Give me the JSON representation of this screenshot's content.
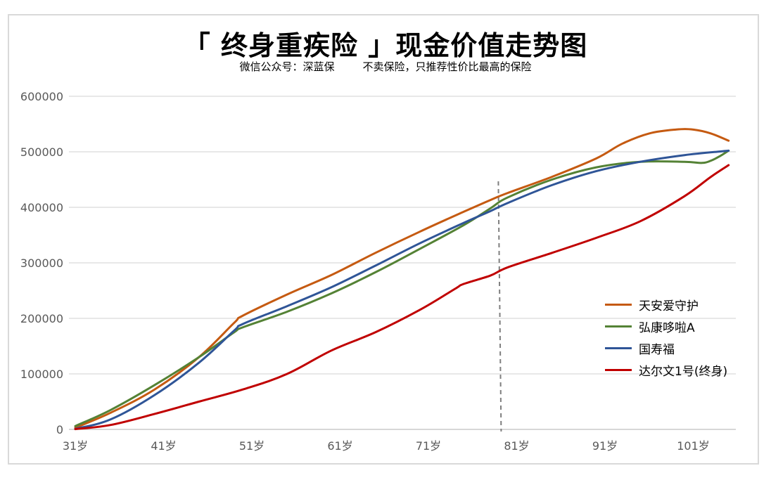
{
  "chart_data": {
    "type": "line",
    "title": "「 终身重疾险 」现金价值走势图",
    "subtitle_left": "微信公众号：深蓝保",
    "subtitle_right": "不卖保险，只推荐性价比最高的保险",
    "xlabel": "",
    "ylabel": "",
    "x_range": [
      31,
      105
    ],
    "ylim": [
      0,
      600000
    ],
    "y_ticks": [
      0,
      100000,
      200000,
      300000,
      400000,
      500000,
      600000
    ],
    "y_tick_labels": [
      "0",
      "100000",
      "200000",
      "300000",
      "400000",
      "500000",
      "600000"
    ],
    "x_ticks": [
      31,
      41,
      51,
      61,
      71,
      81,
      91,
      101
    ],
    "x_tick_labels": [
      "31岁",
      "41岁",
      "51岁",
      "61岁",
      "71岁",
      "81岁",
      "91岁",
      "101岁"
    ],
    "reference_line_x": 79,
    "grid": "horizontal",
    "legend_position": "bottom-right",
    "series": [
      {
        "name": "天安爱守护",
        "color": "#c55a11",
        "x": [
          31,
          35,
          40,
          45,
          49,
          50,
          55,
          60,
          65,
          70,
          75,
          78,
          80,
          85,
          90,
          93,
          96,
          99,
          101,
          103,
          105
        ],
        "y": [
          3000,
          30000,
          72000,
          130000,
          192000,
          205000,
          243000,
          278000,
          318000,
          356000,
          392000,
          413000,
          426000,
          455000,
          488000,
          515000,
          533000,
          540000,
          540000,
          533000,
          520000
        ]
      },
      {
        "name": "弘康哆啦A",
        "color": "#548235",
        "x": [
          31,
          35,
          40,
          45,
          49,
          50,
          55,
          60,
          65,
          70,
          75,
          78,
          80,
          85,
          90,
          95,
          100,
          102,
          103,
          104,
          105
        ],
        "y": [
          6000,
          35000,
          80000,
          130000,
          175000,
          184000,
          212000,
          245000,
          283000,
          325000,
          368000,
          398000,
          418000,
          450000,
          472000,
          482000,
          482000,
          480000,
          484000,
          492000,
          502000
        ]
      },
      {
        "name": "国寿福",
        "color": "#2f5597",
        "x": [
          31,
          35,
          40,
          45,
          49,
          50,
          55,
          60,
          65,
          70,
          75,
          78,
          80,
          85,
          90,
          95,
          100,
          105
        ],
        "y": [
          1000,
          18000,
          62000,
          120000,
          178000,
          190000,
          222000,
          256000,
          295000,
          335000,
          372000,
          393000,
          408000,
          440000,
          465000,
          482000,
          494000,
          502000
        ]
      },
      {
        "name": "达尔文1号(终身)",
        "color": "#c00000",
        "x": [
          31,
          35,
          40,
          45,
          50,
          55,
          60,
          65,
          70,
          74,
          75,
          78,
          80,
          85,
          90,
          95,
          100,
          103,
          105
        ],
        "y": [
          500,
          8000,
          28000,
          50000,
          72000,
          100000,
          142000,
          175000,
          215000,
          253000,
          262000,
          277000,
          292000,
          318000,
          345000,
          375000,
          420000,
          455000,
          476000
        ]
      }
    ]
  }
}
